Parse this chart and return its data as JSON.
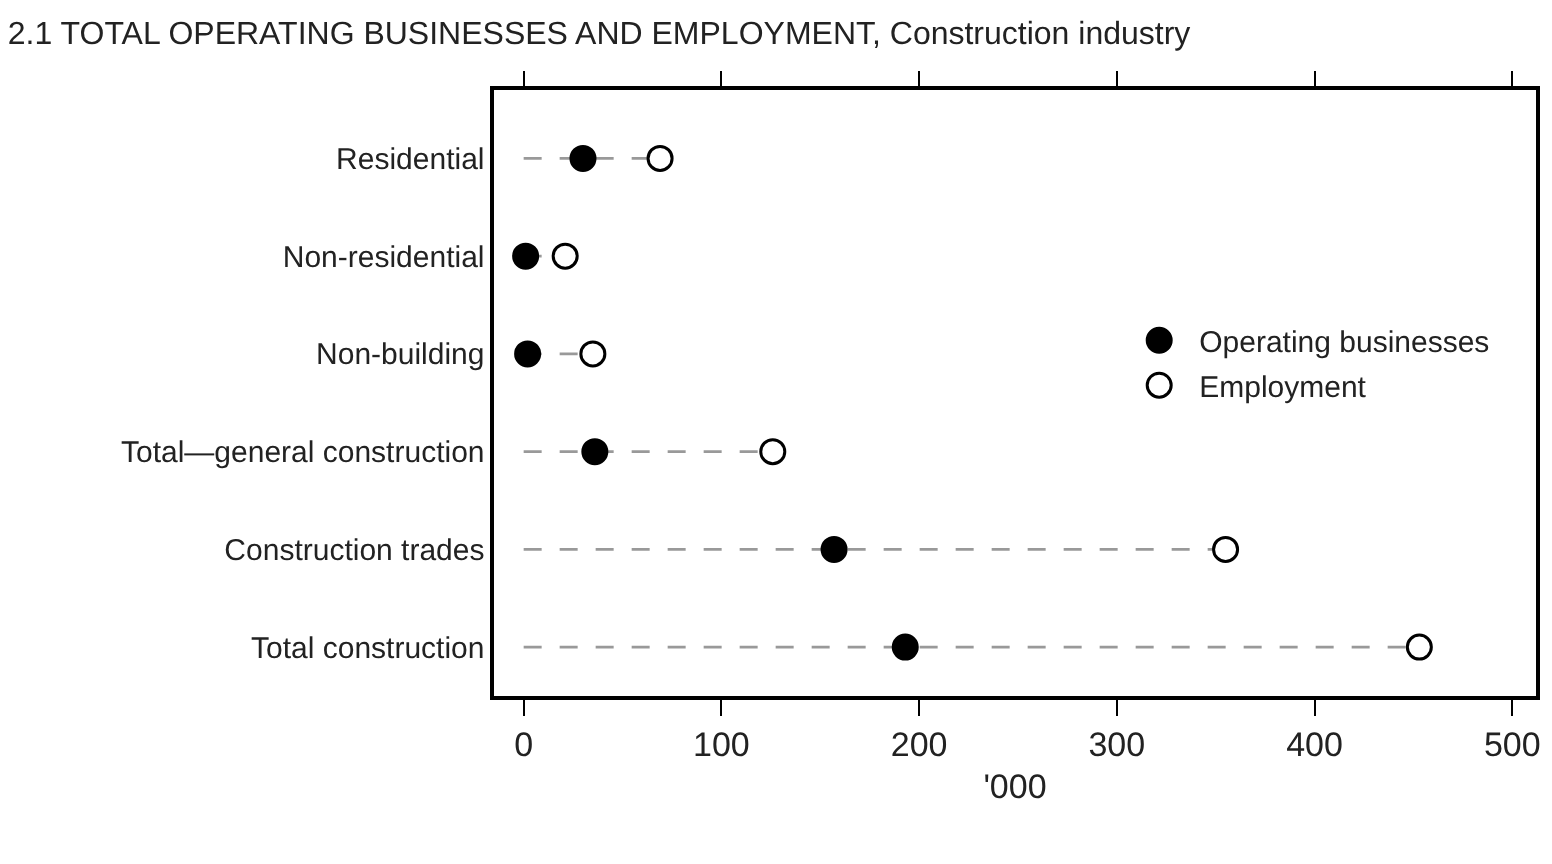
{
  "chart_data": {
    "type": "scatter",
    "title": "2.1 TOTAL OPERATING BUSINESSES AND EMPLOYMENT, Construction industry",
    "xlabel": "'000",
    "orientation": "horizontal",
    "categories": [
      "Residential",
      "Non-residential",
      "Non-building",
      "Total—general construction",
      "Construction trades",
      "Total construction"
    ],
    "series": [
      {
        "name": "Operating businesses",
        "color": "#000000",
        "values": [
          30,
          1,
          2,
          36,
          157,
          193
        ]
      },
      {
        "name": "Employment",
        "type": "lollipop",
        "color": "#ffffff",
        "line_style": "dashed",
        "values": [
          69,
          21,
          35,
          126,
          355,
          453
        ]
      }
    ],
    "xlim": [
      -15,
      512
    ],
    "xticks": [
      0,
      100,
      200,
      300,
      400,
      500
    ],
    "legend": "right",
    "marker": "circle"
  }
}
